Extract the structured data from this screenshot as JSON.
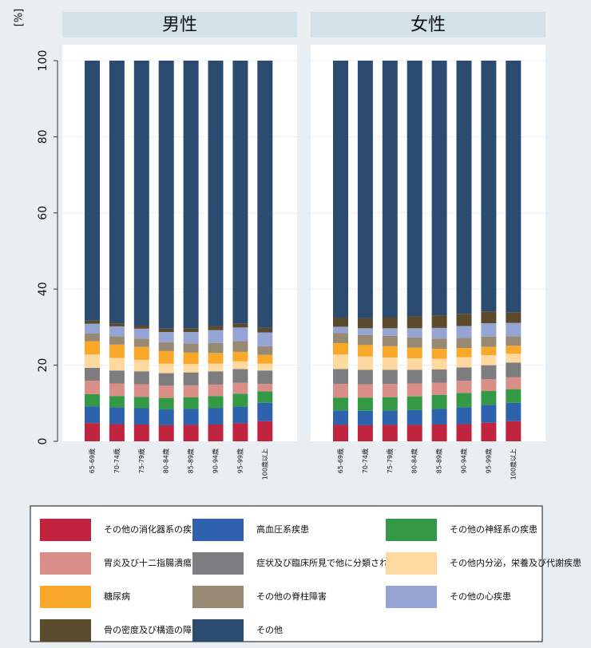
{
  "chart_data": {
    "type": "bar",
    "stacked": true,
    "y_unit_label": "[%]",
    "ylim": [
      0,
      100
    ],
    "yticks": [
      0,
      20,
      40,
      60,
      80,
      100
    ],
    "grid": true,
    "legend_position": "bottom",
    "categories": [
      "65-69歳",
      "70-74歳",
      "75-79歳",
      "80-84歳",
      "85-89歳",
      "90-94歳",
      "95-99歳",
      "100歳以上"
    ],
    "series": [
      {
        "name": "その他の消化器系の疾患",
        "color": "#c0243e"
      },
      {
        "name": "高血圧系疾患",
        "color": "#2f62ac"
      },
      {
        "name": "その他の神経系の疾患",
        "color": "#339945"
      },
      {
        "name": "胃炎及び十二指腸潰瘍",
        "color": "#d98e87"
      },
      {
        "name": "症状及び臨床所見で他に分類されないもの",
        "color": "#7d7d7f"
      },
      {
        "name": "その他内分泌，栄養及び代謝疾患",
        "color": "#fdd9a0"
      },
      {
        "name": "糖尿病",
        "color": "#f9a829"
      },
      {
        "name": "その他の脊柱障害",
        "color": "#988a72"
      },
      {
        "name": "その他の心疾患",
        "color": "#96a4d4"
      },
      {
        "name": "骨の密度及び構造の障害",
        "color": "#5b4a2c"
      },
      {
        "name": "その他",
        "color": "#2b4c70"
      }
    ],
    "panels": [
      {
        "title": "男性",
        "values": [
          [
            4.8,
            4.5,
            4.4,
            4.2,
            4.3,
            4.4,
            4.7,
            5.3
          ],
          [
            4.4,
            4.4,
            4.3,
            4.2,
            4.2,
            4.3,
            4.4,
            4.8
          ],
          [
            3.2,
            3.0,
            3.0,
            3.0,
            3.1,
            3.2,
            3.4,
            3.0
          ],
          [
            3.5,
            3.3,
            3.3,
            3.2,
            3.1,
            3.0,
            2.9,
            2.0
          ],
          [
            3.4,
            3.4,
            3.4,
            3.3,
            3.4,
            3.5,
            3.6,
            3.5
          ],
          [
            3.5,
            3.3,
            3.0,
            2.5,
            2.2,
            2.0,
            2.0,
            1.8
          ],
          [
            3.5,
            3.5,
            3.4,
            3.3,
            3.0,
            2.8,
            2.5,
            2.3
          ],
          [
            2.0,
            2.2,
            2.2,
            2.3,
            2.4,
            2.6,
            2.8,
            2.3
          ],
          [
            2.6,
            2.6,
            2.6,
            2.7,
            3.0,
            3.4,
            3.6,
            3.6
          ],
          [
            0.8,
            0.8,
            0.8,
            0.9,
            1.0,
            1.1,
            1.1,
            1.2
          ],
          [
            68.3,
            69.0,
            69.6,
            70.4,
            70.3,
            69.7,
            69.0,
            70.2
          ]
        ]
      },
      {
        "title": "女性",
        "values": [
          [
            4.3,
            4.2,
            4.3,
            4.3,
            4.4,
            4.5,
            4.9,
            5.3
          ],
          [
            3.8,
            3.8,
            3.8,
            3.9,
            4.1,
            4.4,
            4.7,
            4.8
          ],
          [
            3.4,
            3.5,
            3.5,
            3.6,
            3.7,
            3.8,
            3.6,
            3.6
          ],
          [
            3.6,
            3.5,
            3.5,
            3.4,
            3.2,
            3.2,
            3.1,
            3.1
          ],
          [
            3.9,
            3.8,
            3.7,
            3.6,
            3.5,
            3.5,
            3.7,
            3.9
          ],
          [
            3.8,
            3.5,
            3.2,
            3.0,
            2.8,
            2.7,
            2.6,
            2.3
          ],
          [
            3.0,
            3.0,
            3.0,
            2.8,
            2.6,
            2.4,
            2.2,
            2.1
          ],
          [
            2.6,
            2.6,
            2.7,
            2.7,
            2.7,
            2.7,
            2.7,
            2.5
          ],
          [
            1.7,
            1.8,
            2.0,
            2.4,
            2.8,
            3.1,
            3.5,
            3.5
          ],
          [
            2.4,
            2.6,
            2.9,
            3.1,
            3.3,
            3.2,
            3.1,
            2.8
          ],
          [
            67.5,
            67.7,
            67.4,
            67.2,
            66.9,
            66.5,
            65.9,
            66.1
          ]
        ]
      }
    ]
  }
}
